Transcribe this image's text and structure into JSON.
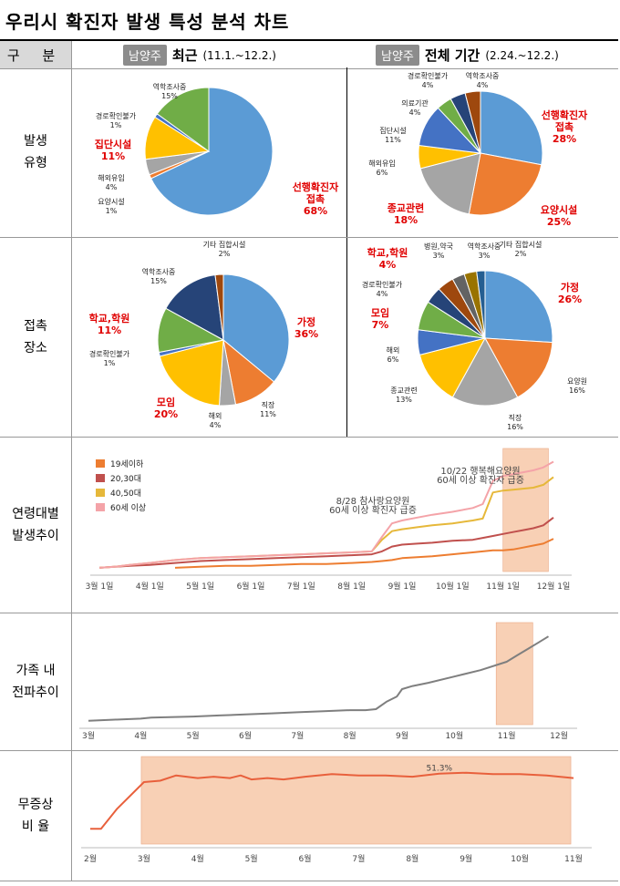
{
  "title": "우리시 확진자 발생 특성 분석 차트",
  "header": {
    "col_label": "구 분",
    "recent": {
      "badge": "남양주",
      "label": "최근",
      "period": "(11.1.~12.2.)"
    },
    "total": {
      "badge": "남양주",
      "label": "전체 기간",
      "period": "(2.24.~12.2.)"
    }
  },
  "rows": {
    "type": "발생\n유형",
    "place": "접촉\n장소",
    "age": "연령대별\n발생추이",
    "family": "가족 내\n전파추이",
    "asym": "무증상\n비 율"
  },
  "chart_data": [
    {
      "id": "type_recent",
      "type": "pie",
      "slices": [
        {
          "name": "선행확진자\n접촉",
          "value": 68,
          "color": "#5b9bd5",
          "highlight": true
        },
        {
          "name": "요양시설",
          "value": 1,
          "color": "#ed7d31",
          "highlight": false
        },
        {
          "name": "해외유입",
          "value": 4,
          "color": "#a5a5a5",
          "highlight": false
        },
        {
          "name": "집단시설",
          "value": 11,
          "color": "#ffc000",
          "highlight": true
        },
        {
          "name": "경로확인불가",
          "value": 1,
          "color": "#4472c4",
          "highlight": false
        },
        {
          "name": "역학조사중",
          "value": 15,
          "color": "#70ad47",
          "highlight": false
        }
      ]
    },
    {
      "id": "type_total",
      "type": "pie",
      "slices": [
        {
          "name": "선행확진자\n접촉",
          "value": 28,
          "color": "#5b9bd5",
          "highlight": true
        },
        {
          "name": "요양시설",
          "value": 25,
          "color": "#ed7d31",
          "highlight": true
        },
        {
          "name": "종교관련",
          "value": 18,
          "color": "#a5a5a5",
          "highlight": true
        },
        {
          "name": "해외유입",
          "value": 6,
          "color": "#ffc000",
          "highlight": false
        },
        {
          "name": "집단시설",
          "value": 11,
          "color": "#4472c4",
          "highlight": false
        },
        {
          "name": "의료기관",
          "value": 4,
          "color": "#70ad47",
          "highlight": false
        },
        {
          "name": "경로확인불가",
          "value": 4,
          "color": "#264478",
          "highlight": false
        },
        {
          "name": "역학조사중",
          "value": 4,
          "color": "#9e480e",
          "highlight": false
        }
      ]
    },
    {
      "id": "place_recent",
      "type": "pie",
      "slices": [
        {
          "name": "가정",
          "value": 36,
          "color": "#5b9bd5",
          "highlight": true
        },
        {
          "name": "직장",
          "value": 11,
          "color": "#ed7d31",
          "highlight": false
        },
        {
          "name": "해외",
          "value": 4,
          "color": "#a5a5a5",
          "highlight": false
        },
        {
          "name": "모임",
          "value": 20,
          "color": "#ffc000",
          "highlight": true
        },
        {
          "name": "경로확인불가",
          "value": 1,
          "color": "#4472c4",
          "highlight": false
        },
        {
          "name": "학교,학원",
          "value": 11,
          "color": "#70ad47",
          "highlight": true
        },
        {
          "name": "역학조사중",
          "value": 15,
          "color": "#264478",
          "highlight": false
        },
        {
          "name": "기타 집합시설",
          "value": 2,
          "color": "#9e480e",
          "highlight": false
        }
      ]
    },
    {
      "id": "place_total",
      "type": "pie",
      "slices": [
        {
          "name": "가정",
          "value": 26,
          "color": "#5b9bd5",
          "highlight": true
        },
        {
          "name": "요양원",
          "value": 16,
          "color": "#ed7d31",
          "highlight": false
        },
        {
          "name": "직장",
          "value": 16,
          "color": "#a5a5a5",
          "highlight": false
        },
        {
          "name": "종교관련",
          "value": 13,
          "color": "#ffc000",
          "highlight": false
        },
        {
          "name": "해외",
          "value": 6,
          "color": "#4472c4",
          "highlight": false
        },
        {
          "name": "모임",
          "value": 7,
          "color": "#70ad47",
          "highlight": true
        },
        {
          "name": "경로확인불가",
          "value": 4,
          "color": "#264478",
          "highlight": false
        },
        {
          "name": "학교,학원",
          "value": 4,
          "color": "#9e480e",
          "highlight": true
        },
        {
          "name": "병원,약국",
          "value": 3,
          "color": "#636363",
          "highlight": false
        },
        {
          "name": "역학조사중",
          "value": 3,
          "color": "#997300",
          "highlight": false
        },
        {
          "name": "기타 집합시설",
          "value": 2,
          "color": "#255e91",
          "highlight": false
        }
      ]
    },
    {
      "id": "age_trend",
      "type": "line",
      "categories": [
        "3월 1일",
        "4월 1일",
        "5월 1일",
        "6월 1일",
        "7월 1일",
        "8월 1일",
        "9월 1일",
        "10월 1일",
        "11월 1일",
        "12월 1일"
      ],
      "x": [
        3.0,
        3.3,
        3.6,
        4.0,
        4.5,
        5.0,
        5.5,
        6.0,
        6.5,
        7.0,
        7.5,
        8.0,
        8.4,
        8.6,
        8.8,
        9.0,
        9.3,
        9.6,
        10.0,
        10.4,
        10.6,
        10.8,
        11.0,
        11.2,
        11.4,
        11.6,
        11.8,
        12.0
      ],
      "series": [
        {
          "name": "19세이하",
          "color": "#ed7d31",
          "values": [
            null,
            null,
            null,
            null,
            2,
            3,
            4,
            4,
            5,
            6,
            6,
            7,
            8,
            9,
            10,
            12,
            13,
            14,
            16,
            18,
            19,
            20,
            20,
            21,
            23,
            25,
            27,
            32
          ]
        },
        {
          "name": "20,30대",
          "color": "#c0504d",
          "values": [
            2,
            3,
            4,
            5,
            7,
            9,
            10,
            11,
            12,
            13,
            14,
            15,
            16,
            19,
            24,
            26,
            27,
            28,
            30,
            31,
            33,
            35,
            37,
            39,
            41,
            43,
            46,
            54
          ]
        },
        {
          "name": "40,50대",
          "color": "#e6b83a",
          "values": [
            2,
            3,
            5,
            7,
            10,
            12,
            13,
            14,
            15,
            16,
            17,
            18,
            19,
            31,
            40,
            42,
            44,
            46,
            48,
            51,
            53,
            80,
            82,
            83,
            84,
            85,
            88,
            96
          ]
        },
        {
          "name": "60세 이상",
          "color": "#f4a3a8",
          "values": [
            2,
            3,
            5,
            7,
            10,
            12,
            13,
            14,
            15,
            16,
            17,
            18,
            19,
            34,
            48,
            51,
            54,
            57,
            60,
            64,
            68,
            92,
            97,
            99,
            101,
            103,
            106,
            112
          ]
        }
      ],
      "annotations": [
        {
          "text": "8/28 참사랑요양원",
          "text2": "60세 이상 확진자 급증"
        },
        {
          "text": "10/22 행복해요양원",
          "text2": "60세 이상 확진자 급증"
        }
      ],
      "highlight_range": [
        11.0,
        11.9
      ],
      "ylim": [
        0,
        120
      ]
    },
    {
      "id": "family_trend",
      "type": "line",
      "categories": [
        "3월",
        "4월",
        "5월",
        "6월",
        "7월",
        "8월",
        "9월",
        "10월",
        "11월",
        "12월"
      ],
      "x": [
        3.0,
        3.5,
        4.0,
        4.2,
        5.0,
        5.5,
        6.0,
        6.5,
        7.0,
        7.5,
        8.0,
        8.3,
        8.5,
        8.7,
        8.9,
        9.0,
        9.2,
        9.5,
        10.0,
        10.5,
        11.0,
        11.2,
        11.4,
        11.6,
        11.8
      ],
      "series": [
        {
          "name": "가족 내 전파",
          "color": "#7f7f7f",
          "values": [
            2,
            3,
            4,
            5,
            6,
            7,
            8,
            9,
            10,
            11,
            12,
            12,
            13,
            20,
            25,
            32,
            35,
            38,
            44,
            50,
            58,
            64,
            70,
            76,
            82
          ]
        }
      ],
      "highlight_range": [
        10.8,
        11.5
      ],
      "ylim": [
        0,
        90
      ]
    },
    {
      "id": "asym_trend",
      "type": "line",
      "categories": [
        "2월",
        "3월",
        "4월",
        "5월",
        "6월",
        "7월",
        "8월",
        "9월",
        "10월",
        "11월"
      ],
      "x": [
        2.0,
        2.2,
        2.5,
        3.0,
        3.3,
        3.6,
        4.0,
        4.3,
        4.6,
        4.8,
        5.0,
        5.3,
        5.6,
        6.0,
        6.5,
        7.0,
        7.5,
        8.0,
        8.5,
        9.0,
        9.5,
        10.0,
        10.5,
        11.0
      ],
      "series": [
        {
          "name": "무증상 비율",
          "color": "#e8603c",
          "values": [
            10,
            10,
            25,
            45,
            46,
            50,
            48,
            49,
            48,
            50,
            47,
            48,
            47,
            49,
            51,
            50,
            50,
            49,
            51.3,
            52,
            51,
            51,
            50,
            48
          ]
        }
      ],
      "data_label": "51.3%",
      "data_label_x": 8.5,
      "highlight_range": [
        2.95,
        10.95
      ],
      "ylim": [
        0,
        60
      ]
    }
  ]
}
